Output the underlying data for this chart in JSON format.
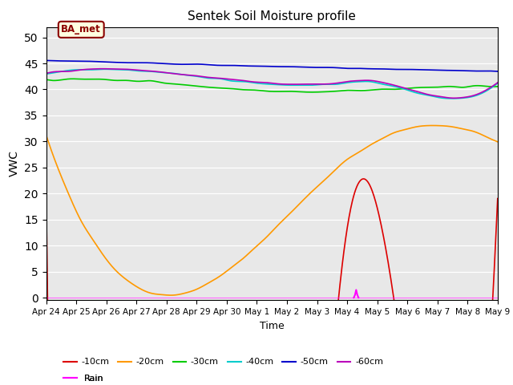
{
  "title": "Sentek Soil Moisture profile",
  "xlabel": "Time",
  "ylabel": "VWC",
  "station_label": "BA_met",
  "ylim": [
    -0.5,
    52
  ],
  "yticks": [
    0,
    5,
    10,
    15,
    20,
    25,
    30,
    35,
    40,
    45,
    50
  ],
  "background_color": "#e8e8e8",
  "x_labels": [
    "Apr 24",
    "Apr 25",
    "Apr 26",
    "Apr 27",
    "Apr 28",
    "Apr 29",
    "Apr 30",
    "May 1",
    "May 2",
    "May 3",
    "May 4",
    "May 5",
    "May 6",
    "May 7",
    "May 8",
    "May 9"
  ],
  "colors": {
    "-10cm": "#dd0000",
    "-20cm": "#ff9900",
    "-30cm": "#00cc00",
    "-40cm": "#00cccc",
    "-50cm": "#0000cc",
    "-60cm": "#bb00bb",
    "Rain": "#ff00ff"
  }
}
